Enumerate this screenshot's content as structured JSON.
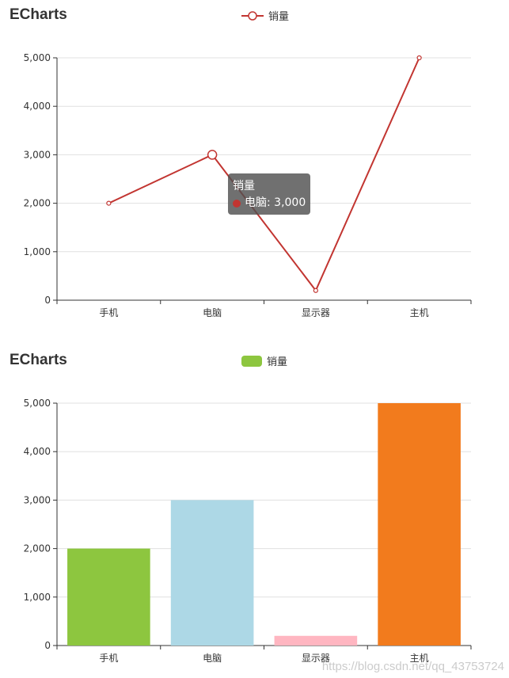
{
  "chart_data": [
    {
      "type": "line",
      "title": "ECharts",
      "categories": [
        "手机",
        "电脑",
        "显示器",
        "主机"
      ],
      "series": [
        {
          "name": "销量",
          "values": [
            2000,
            3000,
            200,
            5000
          ]
        }
      ],
      "yticks": [
        "0",
        "1,000",
        "2,000",
        "3,000",
        "4,000",
        "5,000"
      ],
      "ylim": [
        0,
        5000
      ],
      "grid": true,
      "legend_position": "top-center",
      "color": "#c23531",
      "tooltip": {
        "title": "销量",
        "item": "电脑: 3,000",
        "index": 1
      }
    },
    {
      "type": "bar",
      "title": "ECharts",
      "categories": [
        "手机",
        "电脑",
        "显示器",
        "主机"
      ],
      "series": [
        {
          "name": "销量",
          "values": [
            2000,
            3000,
            200,
            5000
          ]
        }
      ],
      "yticks": [
        "0",
        "1,000",
        "2,000",
        "3,000",
        "4,000",
        "5,000"
      ],
      "ylim": [
        0,
        5000
      ],
      "grid": true,
      "legend_position": "top-center",
      "bar_colors": [
        "#8dc63f",
        "#add8e6",
        "#ffb6c1",
        "#f27b1d"
      ],
      "legend_color": "#8dc63f"
    }
  ],
  "watermark": "https://blog.csdn.net/qq_43753724"
}
